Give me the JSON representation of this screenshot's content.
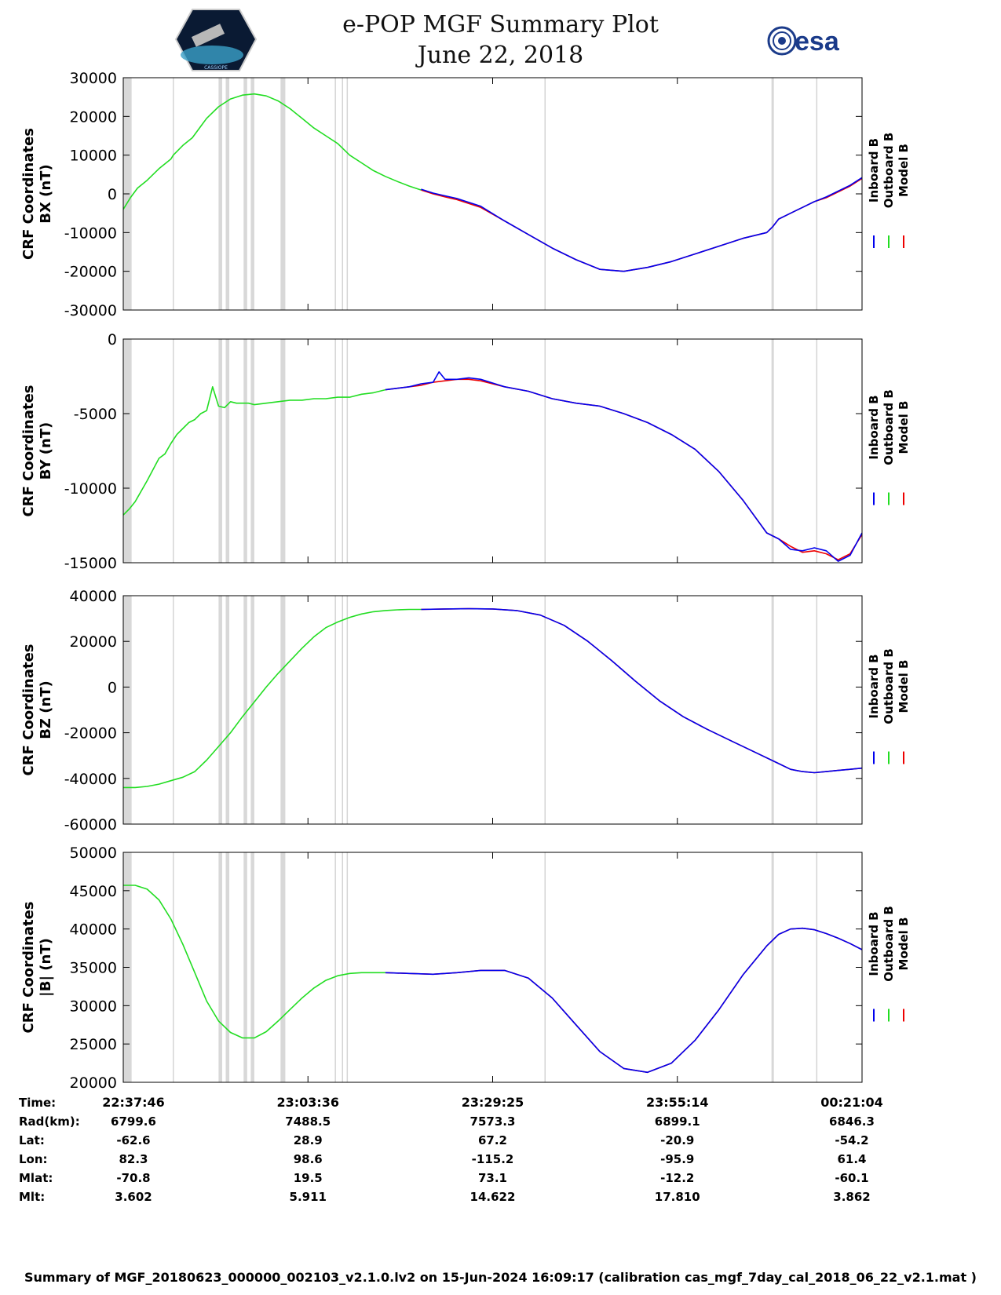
{
  "title": "e-POP MGF Summary Plot",
  "date": "June 22, 2018",
  "logos": {
    "left": "CASSIOPE",
    "right": "esa"
  },
  "footer": "Summary of MGF_20180623_000000_002103_v2.1.0.lv2 on 15-Jun-2024 16:09:17 (calibration cas_mgf_7day_cal_2018_06_22_v2.1.mat )",
  "colors": {
    "inboard": "#0000ee",
    "outboard": "#22dd22",
    "model": "#ee0000",
    "gap": "#d8d8d8"
  },
  "chart_data": [
    {
      "type": "line",
      "ylabel": [
        "CRF Coordinates",
        "BX (nT)"
      ],
      "ylim": [
        -30000,
        30000
      ],
      "yticks": [
        30000,
        20000,
        10000,
        0,
        -10000,
        -20000,
        -30000
      ],
      "legend": [
        "Inboard B",
        "Outboard B",
        "Model B"
      ],
      "xlim": [
        0,
        6200
      ],
      "series": [
        {
          "name": "Outboard B",
          "x": [
            0,
            60,
            120,
            200,
            300,
            400,
            420,
            500,
            580,
            640,
            700,
            800,
            900,
            1000,
            1100,
            1200,
            1300,
            1400,
            1500,
            1600,
            1700,
            1800,
            1900,
            2000,
            2100,
            2200,
            2300,
            2400,
            2500
          ],
          "values": [
            -4000,
            -1000,
            1500,
            3500,
            6500,
            9000,
            10000,
            12500,
            14500,
            17000,
            19500,
            22500,
            24500,
            25500,
            25800,
            25300,
            24000,
            22000,
            19500,
            17000,
            15000,
            13000,
            10000,
            8000,
            6000,
            4500,
            3200,
            2000,
            1000
          ]
        },
        {
          "name": "Model B",
          "x": [
            2500,
            2600,
            2700,
            2800,
            3000,
            3200,
            3400,
            3600,
            3800,
            4000,
            4200,
            4400,
            4600,
            4800,
            5000,
            5200,
            5400,
            5450,
            5500,
            5600,
            5700,
            5800,
            5900,
            6000,
            6100,
            6200
          ],
          "values": [
            1000,
            0,
            -800,
            -1500,
            -3500,
            -7000,
            -10500,
            -14000,
            -17000,
            -19500,
            -20000,
            -19000,
            -17500,
            -15500,
            -13500,
            -11500,
            -10000,
            -8500,
            -6500,
            -5000,
            -3500,
            -2000,
            -1000,
            500,
            2000,
            4000
          ]
        },
        {
          "name": "Inboard B",
          "x": [
            2500,
            2600,
            2700,
            2800,
            3000,
            3200,
            3400,
            3600,
            3800,
            4000,
            4200,
            4400,
            4600,
            4800,
            5000,
            5200,
            5400,
            5450,
            5500,
            5600,
            5700,
            5800,
            5900,
            6000,
            6100,
            6200
          ],
          "values": [
            1200,
            200,
            -500,
            -1200,
            -3200,
            -7000,
            -10500,
            -14000,
            -17000,
            -19500,
            -20000,
            -19000,
            -17500,
            -15500,
            -13500,
            -11500,
            -10000,
            -8500,
            -6500,
            -5000,
            -3500,
            -2000,
            -800,
            700,
            2200,
            4200
          ]
        }
      ]
    },
    {
      "type": "line",
      "ylabel": [
        "CRF Coordinates",
        "BY (nT)"
      ],
      "ylim": [
        -15000,
        0
      ],
      "yticks": [
        0,
        -5000,
        -10000,
        -15000
      ],
      "legend": [
        "Inboard B",
        "Outboard B",
        "Model B"
      ],
      "xlim": [
        0,
        6200
      ],
      "series": [
        {
          "name": "Outboard B",
          "x": [
            0,
            50,
            100,
            200,
            300,
            350,
            400,
            450,
            500,
            550,
            600,
            650,
            700,
            750,
            800,
            850,
            900,
            950,
            1000,
            1050,
            1100,
            1200,
            1300,
            1400,
            1500,
            1600,
            1700,
            1800,
            1900,
            2000,
            2100,
            2150,
            2200
          ],
          "values": [
            -11800,
            -11400,
            -10900,
            -9500,
            -8000,
            -7700,
            -7000,
            -6400,
            -6000,
            -5600,
            -5400,
            -5000,
            -4800,
            -3200,
            -4500,
            -4600,
            -4200,
            -4300,
            -4300,
            -4300,
            -4400,
            -4300,
            -4200,
            -4100,
            -4100,
            -4000,
            -4000,
            -3900,
            -3900,
            -3700,
            -3600,
            -3500,
            -3400
          ]
        },
        {
          "name": "Model B",
          "x": [
            2200,
            2300,
            2400,
            2500,
            2600,
            2700,
            2800,
            2900,
            3000,
            3200,
            3400,
            3600,
            3800,
            4000,
            4200,
            4400,
            4600,
            4800,
            5000,
            5200,
            5400,
            5500,
            5600,
            5700,
            5800,
            5900,
            6000,
            6100,
            6200
          ],
          "values": [
            -3400,
            -3300,
            -3200,
            -3100,
            -2900,
            -2800,
            -2700,
            -2700,
            -2800,
            -3200,
            -3500,
            -4000,
            -4300,
            -4500,
            -5000,
            -5600,
            -6400,
            -7400,
            -8900,
            -10800,
            -13000,
            -13400,
            -13900,
            -14300,
            -14200,
            -14400,
            -14800,
            -14400,
            -13100
          ]
        },
        {
          "name": "Inboard B",
          "x": [
            2200,
            2300,
            2400,
            2500,
            2600,
            2650,
            2700,
            2800,
            2900,
            3000,
            3200,
            3400,
            3600,
            3800,
            4000,
            4200,
            4400,
            4600,
            4800,
            5000,
            5200,
            5400,
            5500,
            5600,
            5700,
            5800,
            5900,
            6000,
            6100,
            6200
          ],
          "values": [
            -3400,
            -3300,
            -3200,
            -3000,
            -2900,
            -2200,
            -2700,
            -2700,
            -2600,
            -2700,
            -3200,
            -3500,
            -4000,
            -4300,
            -4500,
            -5000,
            -5600,
            -6400,
            -7400,
            -8900,
            -10800,
            -13000,
            -13400,
            -14100,
            -14200,
            -14000,
            -14200,
            -14900,
            -14500,
            -13000
          ]
        }
      ]
    },
    {
      "type": "line",
      "ylabel": [
        "CRF Coordinates",
        "BZ (nT)"
      ],
      "ylim": [
        -60000,
        40000
      ],
      "yticks": [
        40000,
        20000,
        0,
        -20000,
        -40000,
        -60000
      ],
      "legend": [
        "Inboard B",
        "Outboard B",
        "Model B"
      ],
      "xlim": [
        0,
        6200
      ],
      "series": [
        {
          "name": "Outboard B",
          "x": [
            0,
            100,
            200,
            300,
            400,
            500,
            600,
            700,
            800,
            900,
            1000,
            1100,
            1200,
            1300,
            1400,
            1500,
            1600,
            1700,
            1800,
            1900,
            2000,
            2100,
            2200,
            2300,
            2400,
            2500
          ],
          "values": [
            -44000,
            -44000,
            -43500,
            -42500,
            -41000,
            -39500,
            -37000,
            -32000,
            -26000,
            -20000,
            -13000,
            -6500,
            0,
            6000,
            11500,
            17000,
            22000,
            26000,
            28500,
            30500,
            32000,
            33000,
            33500,
            33800,
            34000,
            34000
          ]
        },
        {
          "name": "Model B",
          "x": [
            2500,
            2700,
            2900,
            3100,
            3300,
            3500,
            3700,
            3900,
            4100,
            4300,
            4500,
            4700,
            4900,
            5100,
            5300,
            5500,
            5600,
            5700,
            5800,
            5900,
            6000,
            6100,
            6200
          ],
          "values": [
            34000,
            34200,
            34300,
            34200,
            33500,
            31500,
            27000,
            20000,
            11500,
            2500,
            -6000,
            -13000,
            -18500,
            -23500,
            -28500,
            -33500,
            -36000,
            -37000,
            -37500,
            -37000,
            -36500,
            -36000,
            -35500
          ]
        },
        {
          "name": "Inboard B",
          "x": [
            2500,
            2700,
            2900,
            3100,
            3300,
            3500,
            3700,
            3900,
            4100,
            4300,
            4500,
            4700,
            4900,
            5100,
            5300,
            5500,
            5600,
            5700,
            5800,
            5900,
            6000,
            6100,
            6200
          ],
          "values": [
            34000,
            34200,
            34300,
            34200,
            33500,
            31500,
            27000,
            20000,
            11500,
            2500,
            -6000,
            -13000,
            -18500,
            -23500,
            -28500,
            -33500,
            -36000,
            -37000,
            -37500,
            -37000,
            -36500,
            -36000,
            -35500
          ]
        }
      ]
    },
    {
      "type": "line",
      "ylabel": [
        "CRF Coordinates",
        "|B| (nT)"
      ],
      "ylim": [
        20000,
        50000
      ],
      "yticks": [
        50000,
        45000,
        40000,
        35000,
        30000,
        25000,
        20000
      ],
      "legend": [
        "Inboard B",
        "Outboard B",
        "Model B"
      ],
      "xlim": [
        0,
        6200
      ],
      "series": [
        {
          "name": "Outboard B",
          "x": [
            0,
            100,
            200,
            300,
            400,
            500,
            600,
            700,
            800,
            900,
            1000,
            1100,
            1200,
            1300,
            1400,
            1500,
            1600,
            1700,
            1800,
            1900,
            2000,
            2100,
            2200
          ],
          "values": [
            45700,
            45700,
            45200,
            43800,
            41300,
            38000,
            34300,
            30600,
            28000,
            26500,
            25800,
            25800,
            26600,
            28000,
            29500,
            31000,
            32300,
            33300,
            33900,
            34200,
            34300,
            34300,
            34300
          ]
        },
        {
          "name": "Model B",
          "x": [
            2200,
            2400,
            2600,
            2800,
            3000,
            3200,
            3400,
            3600,
            3800,
            4000,
            4200,
            4400,
            4600,
            4800,
            5000,
            5200,
            5400,
            5500,
            5600,
            5700,
            5800,
            5900,
            6000,
            6100,
            6200
          ],
          "values": [
            34300,
            34200,
            34100,
            34300,
            34600,
            34600,
            33600,
            31000,
            27500,
            24000,
            21800,
            21300,
            22500,
            25500,
            29500,
            34000,
            37800,
            39300,
            40000,
            40100,
            39900,
            39400,
            38800,
            38100,
            37300
          ]
        },
        {
          "name": "Inboard B",
          "x": [
            2200,
            2400,
            2600,
            2800,
            3000,
            3200,
            3400,
            3600,
            3800,
            4000,
            4200,
            4400,
            4600,
            4800,
            5000,
            5200,
            5400,
            5500,
            5600,
            5700,
            5800,
            5900,
            6000,
            6100,
            6200
          ],
          "values": [
            34300,
            34200,
            34100,
            34300,
            34600,
            34600,
            33600,
            31000,
            27500,
            24000,
            21800,
            21300,
            22500,
            25500,
            29500,
            34000,
            37800,
            39300,
            40000,
            40100,
            39900,
            39400,
            38800,
            38100,
            37300
          ]
        }
      ]
    }
  ],
  "gaps": [
    [
      0,
      70
    ],
    [
      800,
      830
    ],
    [
      860,
      890
    ],
    [
      1010,
      1040
    ],
    [
      1070,
      1100
    ],
    [
      1320,
      1360
    ],
    [
      5440,
      5460
    ]
  ],
  "grid_lines": [
    420,
    1780,
    1840,
    1880,
    3540,
    5820
  ],
  "x_ticks": [
    0,
    1550,
    3100,
    4650,
    6200
  ],
  "orbit_table": {
    "row_labels": [
      "Time:",
      "Rad(km):",
      "Lat:",
      "Lon:",
      "Mlat:",
      "Mlt:"
    ],
    "columns": [
      [
        "22:37:46",
        "6799.6",
        "-62.6",
        "82.3",
        "-70.8",
        "3.602"
      ],
      [
        "23:03:36",
        "7488.5",
        "28.9",
        "98.6",
        "19.5",
        "5.911"
      ],
      [
        "23:29:25",
        "7573.3",
        "67.2",
        "-115.2",
        "73.1",
        "14.622"
      ],
      [
        "23:55:14",
        "6899.1",
        "-20.9",
        "-95.9",
        "-12.2",
        "17.810"
      ],
      [
        "00:21:04",
        "6846.3",
        "-54.2",
        "61.4",
        "-60.1",
        "3.862"
      ]
    ]
  }
}
